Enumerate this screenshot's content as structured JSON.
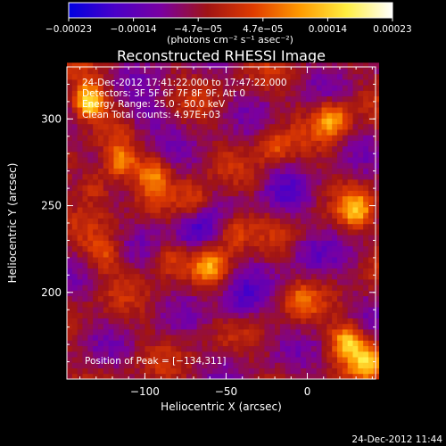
{
  "chart_data": {
    "type": "heatmap",
    "title": "Reconstructed RHESSI Image",
    "xlabel": "Heliocentric X (arcsec)",
    "ylabel": "Heliocentric Y (arcsec)",
    "xlim": [
      -148,
      42
    ],
    "ylim": [
      150,
      330
    ],
    "x_ticks": [
      {
        "value": -100,
        "label": "−100"
      },
      {
        "value": -50,
        "label": "−50"
      },
      {
        "value": 0,
        "label": "0"
      }
    ],
    "y_ticks": [
      {
        "value": 200,
        "label": "200"
      },
      {
        "value": 250,
        "label": "250"
      },
      {
        "value": 300,
        "label": "300"
      }
    ],
    "annotations": [
      "24-Dec-2012 17:41:22.000 to 17:47:22.000",
      "Detectors: 3F 5F 6F 7F 8F 9F, Att 0",
      "Energy Range: 25.0 - 50.0 keV",
      "Clean   Total counts: 4.97E+03"
    ],
    "peak_label": "Position of Peak = [−134,311]",
    "peak": {
      "x": -134,
      "y": 311
    },
    "colorbar": {
      "range": [
        -0.00023,
        0.00023
      ],
      "ticks": [
        "−0.00023",
        "−0.00014",
        "−4.7e−05",
        "4.7e−05",
        "0.00014",
        "0.00023"
      ],
      "unit": "(photons cm⁻² s⁻¹ asec⁻²)",
      "colors": [
        "#0000e0",
        "#4a00c8",
        "#7a00a0",
        "#a01414",
        "#e03c00",
        "#ff9a00",
        "#ffee40",
        "#ffffff"
      ]
    },
    "hotspots": [
      {
        "x": -135,
        "y": 310,
        "value": 0.00023
      },
      {
        "x": -115,
        "y": 275,
        "value": 0.00015
      },
      {
        "x": -95,
        "y": 268,
        "value": 0.00012
      },
      {
        "x": -130,
        "y": 262,
        "value": 0.0001
      },
      {
        "x": -70,
        "y": 253,
        "value": 9e-05
      },
      {
        "x": -45,
        "y": 235,
        "value": 0.0001
      },
      {
        "x": -60,
        "y": 215,
        "value": 0.00012
      },
      {
        "x": 15,
        "y": 300,
        "value": 0.00016
      },
      {
        "x": 30,
        "y": 248,
        "value": 0.00014
      },
      {
        "x": 25,
        "y": 172,
        "value": 0.00018
      },
      {
        "x": 38,
        "y": 160,
        "value": 0.00016
      },
      {
        "x": -5,
        "y": 195,
        "value": 8e-05
      },
      {
        "x": -20,
        "y": 285,
        "value": 9e-05
      },
      {
        "x": -125,
        "y": 222,
        "value": 8e-05
      },
      {
        "x": -85,
        "y": 220,
        "value": 7e-05
      }
    ],
    "coldspots": [
      {
        "x": -70,
        "y": 235,
        "value": -0.0001
      },
      {
        "x": -40,
        "y": 195,
        "value": -8e-05
      },
      {
        "x": -100,
        "y": 300,
        "value": -6e-05
      },
      {
        "x": -15,
        "y": 255,
        "value": -6e-05
      },
      {
        "x": 0,
        "y": 220,
        "value": -5e-05
      }
    ]
  },
  "footer": {
    "timestamp": "24-Dec-2012 11:44"
  }
}
